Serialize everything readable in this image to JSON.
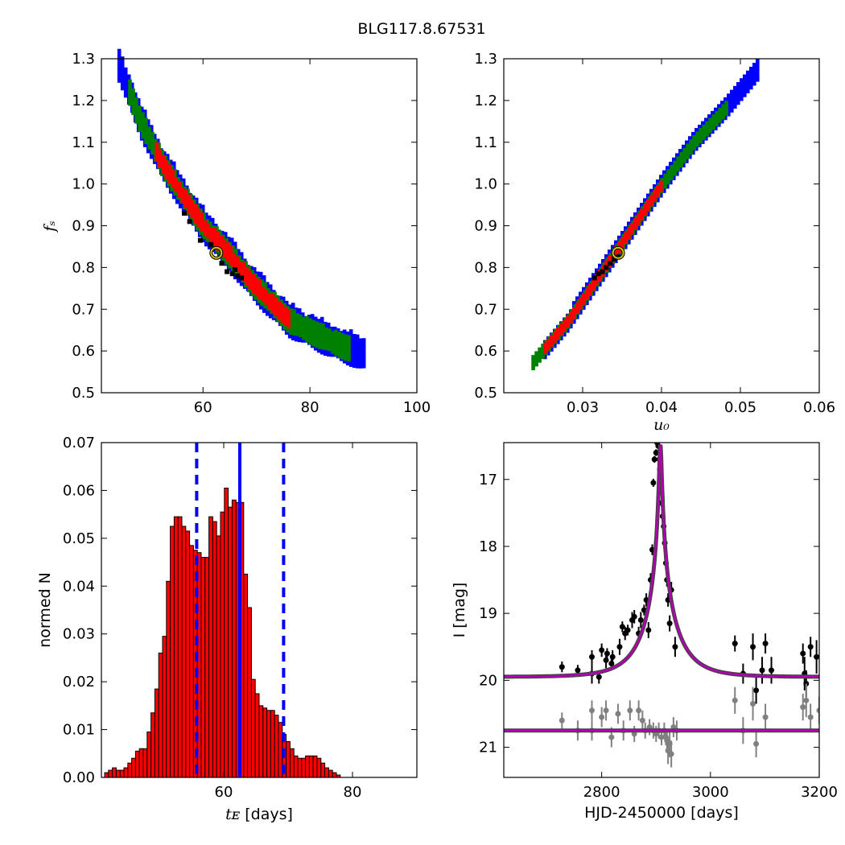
{
  "title": "BLG117.8.67531",
  "chart_data": [
    {
      "type": "heatmap",
      "panel": "top-left",
      "xlabel": "",
      "ylabel": "f_s",
      "xlim": [
        41,
        100
      ],
      "ylim": [
        0.5,
        1.3
      ],
      "xticks": [
        60,
        80,
        100
      ],
      "yticks": [
        0.5,
        0.6,
        0.7,
        0.8,
        0.9,
        1.0,
        1.1,
        1.2,
        1.3
      ],
      "xtick_labels": [
        "60",
        "80",
        "100"
      ],
      "ytick_labels": [
        "0.5",
        "0.6",
        "0.7",
        "0.8",
        "0.9",
        "1.0",
        "1.1",
        "1.2",
        "1.3"
      ],
      "band": {
        "spine_x": [
          45,
          48,
          52,
          56,
          60,
          64,
          68,
          72,
          76,
          80,
          84,
          88
        ],
        "spine_y": [
          1.25,
          1.15,
          1.05,
          0.97,
          0.895,
          0.84,
          0.775,
          0.72,
          0.67,
          0.645,
          0.62,
          0.6
        ],
        "half_width": {
          "blue": 0.035,
          "green": 0.027,
          "red": 0.018
        },
        "x_extent": {
          "blue": [
            44,
            90
          ],
          "green": [
            46,
            87
          ],
          "red": [
            51,
            76
          ]
        }
      },
      "samples_x": [
        56.5,
        57.5,
        59.5,
        61.5,
        63.5,
        64.5,
        65.5,
        66.5,
        67.2,
        66.0
      ],
      "samples_y": [
        0.93,
        0.91,
        0.865,
        0.855,
        0.81,
        0.79,
        0.785,
        0.78,
        0.775,
        0.795
      ],
      "best_fit": {
        "x": 62.5,
        "y": 0.835
      },
      "colors": {
        "blue": "#0000ff",
        "green": "#008000",
        "red": "#ff0000",
        "marker": "#d4c400"
      }
    },
    {
      "type": "heatmap",
      "panel": "top-right",
      "xlabel": "u_0",
      "ylabel": "",
      "xlim": [
        0.02,
        0.06
      ],
      "ylim": [
        0.5,
        1.3
      ],
      "xticks": [
        0.03,
        0.04,
        0.05,
        0.06
      ],
      "yticks": [
        0.5,
        0.6,
        0.7,
        0.8,
        0.9,
        1.0,
        1.1,
        1.2,
        1.3
      ],
      "xtick_labels": [
        "0.03",
        "0.04",
        "0.05",
        "0.06"
      ],
      "ytick_labels": [
        "0.5",
        "0.6",
        "0.7",
        "0.8",
        "0.9",
        "1.0",
        "1.1",
        "1.2",
        "1.3"
      ],
      "band": {
        "spine_x": [
          0.0235,
          0.028,
          0.032,
          0.036,
          0.04,
          0.044,
          0.048,
          0.052
        ],
        "spine_y": [
          0.57,
          0.67,
          0.78,
          0.89,
          1.0,
          1.1,
          1.18,
          1.27
        ],
        "half_width": {
          "blue": 0.02,
          "green": 0.014,
          "red": 0.009
        },
        "x_extent": {
          "blue": [
            0.025,
            0.052
          ],
          "green": [
            0.0235,
            0.048
          ],
          "red": [
            0.025,
            0.04
          ]
        }
      },
      "samples_x": [
        0.0315,
        0.032,
        0.0325,
        0.033,
        0.0335,
        0.034,
        0.0345
      ],
      "samples_y": [
        0.775,
        0.785,
        0.79,
        0.8,
        0.81,
        0.82,
        0.825
      ],
      "best_fit": {
        "x": 0.0345,
        "y": 0.835
      },
      "colors": {
        "blue": "#0000ff",
        "green": "#008000",
        "red": "#ff0000",
        "marker": "#d4c400"
      }
    },
    {
      "type": "bar",
      "panel": "bottom-left",
      "xlabel": "t_E [days]",
      "ylabel": "normed N",
      "xlim": [
        41,
        90
      ],
      "ylim": [
        0,
        0.07
      ],
      "xticks": [
        60,
        80
      ],
      "yticks": [
        0,
        0.01,
        0.02,
        0.03,
        0.04,
        0.05,
        0.06,
        0.07
      ],
      "xtick_labels": [
        "60",
        "80"
      ],
      "ytick_labels": [
        "0.00",
        "0.01",
        "0.02",
        "0.03",
        "0.04",
        "0.05",
        "0.06",
        "0.07"
      ],
      "bin_start": 41.5,
      "bin_width": 0.6,
      "values": [
        0.001,
        0.0015,
        0.002,
        0.0015,
        0.0015,
        0.002,
        0.003,
        0.004,
        0.0055,
        0.006,
        0.006,
        0.0095,
        0.0135,
        0.0185,
        0.026,
        0.0295,
        0.041,
        0.0525,
        0.0545,
        0.0545,
        0.0525,
        0.0515,
        0.0485,
        0.0475,
        0.047,
        0.046,
        0.046,
        0.0545,
        0.0535,
        0.0505,
        0.0555,
        0.0605,
        0.0565,
        0.058,
        0.0575,
        0.0575,
        0.0425,
        0.0355,
        0.0205,
        0.0175,
        0.015,
        0.0145,
        0.014,
        0.014,
        0.013,
        0.0115,
        0.009,
        0.0075,
        0.006,
        0.0045,
        0.004,
        0.004,
        0.0045,
        0.0045,
        0.0045,
        0.004,
        0.003,
        0.002,
        0.0015,
        0.001,
        0.0005
      ],
      "median": 62.5,
      "bounds": [
        55.8,
        69.3
      ],
      "colors": {
        "bar": "#ff0000",
        "line": "#0000ff"
      }
    },
    {
      "type": "scatter",
      "panel": "bottom-right",
      "xlabel": "HJD-2450000 [days]",
      "ylabel": "I [mag]",
      "xlim": [
        2620,
        3200
      ],
      "ylim": [
        21.45,
        16.45
      ],
      "xticks": [
        2800,
        3000,
        3200
      ],
      "yticks": [
        17,
        18,
        19,
        20,
        21
      ],
      "xtick_labels": [
        "2800",
        "3000",
        "3200"
      ],
      "ytick_labels": [
        "17",
        "18",
        "19",
        "20",
        "21"
      ],
      "model": {
        "t0": 2908,
        "tE": 62.5,
        "u0": 0.0345,
        "baseline": 19.95,
        "fs": 0.835
      },
      "series": [
        {
          "color": "#000000",
          "x": [
            2727,
            2756,
            2782,
            2782,
            2795,
            2800,
            2808,
            2810,
            2818,
            2820,
            2833,
            2838,
            2843,
            2848,
            2856,
            2860,
            2868,
            2872,
            2878,
            2882,
            2886,
            2890,
            2893,
            2895,
            2897,
            2900,
            2902,
            2904,
            2905,
            2906,
            2907,
            2908,
            2910,
            2912,
            2914,
            2916,
            2918,
            2920,
            2922,
            2925,
            2928,
            2935,
            3045,
            3060,
            3078,
            3084,
            3095,
            3101,
            3112,
            3170,
            3173,
            3176,
            3184,
            3195
          ],
          "y": [
            19.8,
            19.85,
            19.65,
            19.9,
            19.95,
            19.55,
            19.7,
            19.6,
            19.75,
            19.65,
            19.5,
            19.2,
            19.3,
            19.25,
            19.1,
            19.05,
            19.3,
            19.1,
            18.95,
            18.8,
            19.25,
            18.5,
            18.05,
            17.05,
            16.7,
            16.6,
            16.45,
            16.5,
            16.6,
            16.7,
            16.85,
            17.05,
            17.35,
            17.55,
            17.7,
            17.95,
            18.25,
            18.5,
            18.8,
            19.15,
            18.65,
            19.5,
            19.45,
            19.9,
            19.5,
            20.15,
            19.85,
            19.45,
            19.85,
            19.6,
            19.9,
            20.05,
            19.5,
            19.65
          ],
          "err": [
            0.08,
            0.08,
            0.1,
            0.15,
            0.1,
            0.1,
            0.12,
            0.08,
            0.1,
            0.1,
            0.12,
            0.08,
            0.1,
            0.08,
            0.12,
            0.1,
            0.1,
            0.12,
            0.08,
            0.1,
            0.12,
            0.1,
            0.08,
            0.06,
            0.05,
            0.05,
            0.05,
            0.05,
            0.05,
            0.05,
            0.05,
            0.06,
            0.06,
            0.08,
            0.08,
            0.08,
            0.1,
            0.1,
            0.1,
            0.12,
            0.12,
            0.15,
            0.12,
            0.15,
            0.2,
            0.2,
            0.2,
            0.15,
            0.2,
            0.15,
            0.25,
            0.2,
            0.15,
            0.25
          ]
        },
        {
          "color": "#808080",
          "x": [
            2727,
            2756,
            2782,
            2782,
            2800,
            2808,
            2818,
            2830,
            2840,
            2852,
            2860,
            2868,
            2875,
            2880,
            2888,
            2895,
            2900,
            2905,
            2910,
            2915,
            2918,
            2920,
            2922,
            2925,
            2928,
            2932,
            2938,
            3045,
            3060,
            3078,
            3084,
            3101,
            3170,
            3176,
            3184,
            3200
          ],
          "y": [
            20.6,
            20.75,
            20.45,
            20.75,
            20.55,
            20.45,
            20.85,
            20.5,
            20.75,
            20.45,
            20.8,
            20.45,
            20.6,
            20.75,
            20.7,
            20.75,
            20.8,
            20.75,
            20.85,
            20.75,
            20.85,
            20.9,
            21.05,
            20.95,
            21.1,
            20.7,
            20.75,
            20.3,
            20.75,
            20.35,
            20.95,
            20.55,
            20.4,
            20.3,
            20.55,
            20.45
          ],
          "err": [
            0.12,
            0.15,
            0.15,
            0.15,
            0.15,
            0.15,
            0.15,
            0.15,
            0.15,
            0.15,
            0.12,
            0.15,
            0.15,
            0.12,
            0.12,
            0.12,
            0.12,
            0.12,
            0.12,
            0.12,
            0.12,
            0.15,
            0.2,
            0.2,
            0.2,
            0.15,
            0.15,
            0.2,
            0.2,
            0.25,
            0.2,
            0.2,
            0.2,
            0.25,
            0.2,
            0.2
          ]
        }
      ],
      "colors": {
        "model": "#b000b0",
        "model_edge": "#444444"
      }
    }
  ]
}
